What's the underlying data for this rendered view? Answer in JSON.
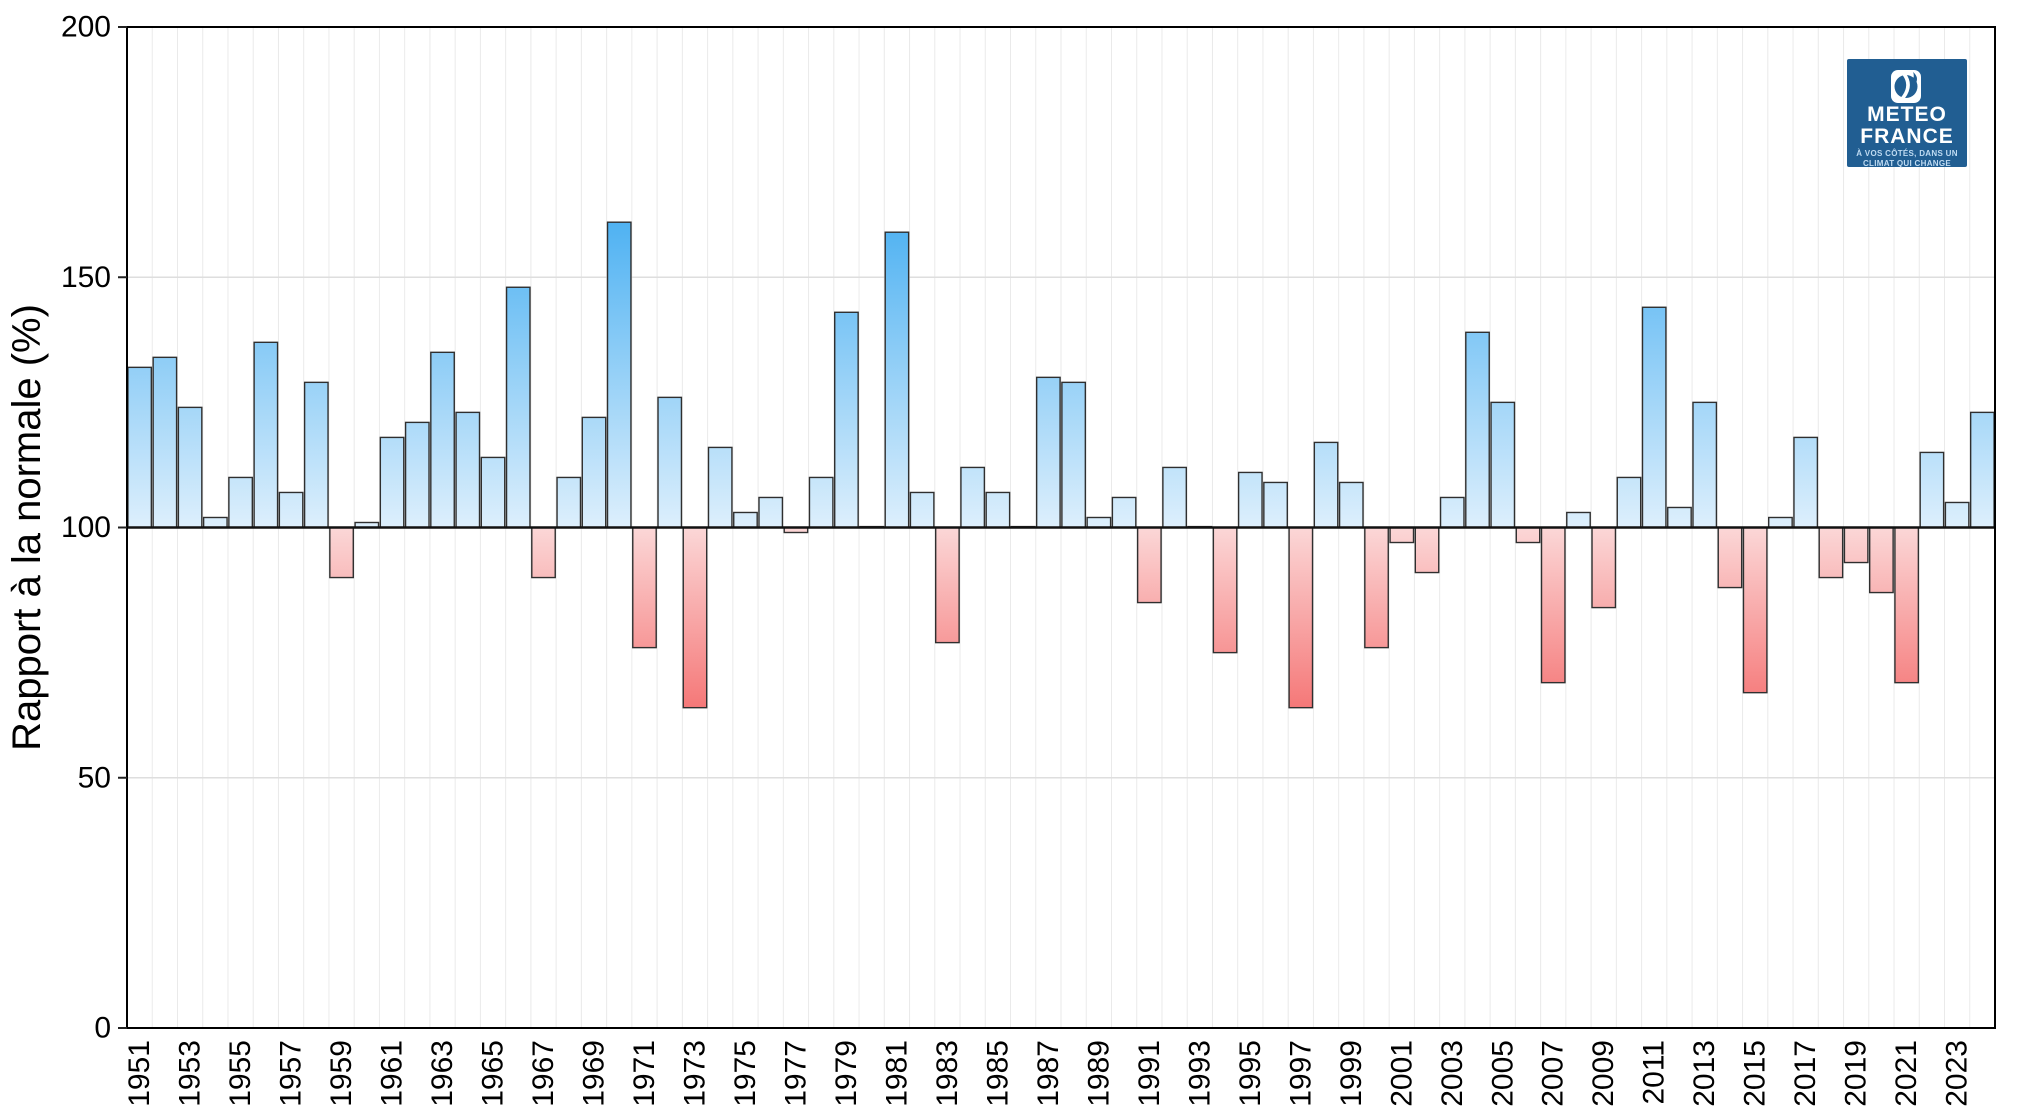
{
  "page": {
    "background": "#ffffff"
  },
  "logo": {
    "line1": "METEO",
    "line2": "FRANCE",
    "tagline1": "À VOS CÔTÉS, DANS UN",
    "tagline2": "CLIMAT QUI CHANGE",
    "bg_color": "#215E92",
    "text_color": "#ffffff",
    "tagline_color": "#BFDBF2"
  },
  "colors": {
    "bar_blue_deep": "#4FB2F2",
    "bar_blue_light": "#DDEFFC",
    "bar_red_deep": "#F57878",
    "bar_red_light": "#FBD7D7",
    "bar_stroke": "#2F2F2F",
    "baseline_line": "#111111",
    "panel_border": "#000000",
    "grid_vertical": "#EAEAEA",
    "grid_horizontal": "#DEDEDE",
    "axis_text": "#000000"
  },
  "chart_data": {
    "type": "bar",
    "title": "",
    "xlabel": "",
    "ylabel": "Rapport à la normale (%)",
    "ylim": [
      0,
      200
    ],
    "yticks": [
      0,
      50,
      100,
      150,
      200
    ],
    "baseline": 100,
    "grid": "on",
    "legend": "none",
    "x_tick_years": [
      1951,
      1953,
      1955,
      1957,
      1959,
      1961,
      1963,
      1965,
      1967,
      1969,
      1971,
      1973,
      1975,
      1977,
      1979,
      1981,
      1983,
      1985,
      1987,
      1989,
      1991,
      1993,
      1995,
      1997,
      1999,
      2001,
      2003,
      2005,
      2007,
      2009,
      2011,
      2013,
      2015,
      2017,
      2019,
      2021,
      2023
    ],
    "years": [
      1951,
      1952,
      1953,
      1954,
      1955,
      1956,
      1957,
      1958,
      1959,
      1960,
      1961,
      1962,
      1963,
      1964,
      1965,
      1966,
      1967,
      1968,
      1969,
      1970,
      1971,
      1972,
      1973,
      1974,
      1975,
      1976,
      1977,
      1978,
      1979,
      1980,
      1981,
      1982,
      1983,
      1984,
      1985,
      1986,
      1987,
      1988,
      1989,
      1990,
      1991,
      1992,
      1993,
      1994,
      1995,
      1996,
      1997,
      1998,
      1999,
      2000,
      2001,
      2002,
      2003,
      2004,
      2005,
      2006,
      2007,
      2008,
      2009,
      2010,
      2011,
      2012,
      2013,
      2014,
      2015,
      2016,
      2017,
      2018,
      2019,
      2020,
      2021,
      2022,
      2023,
      2024
    ],
    "values": [
      132,
      134,
      124,
      102,
      110,
      137,
      107,
      129,
      90,
      101,
      118,
      121,
      135,
      123,
      114,
      148,
      90,
      110,
      122,
      161,
      76,
      126,
      64,
      116,
      103,
      106,
      99,
      110,
      143,
      100,
      159,
      107,
      77,
      112,
      107,
      100,
      130,
      129,
      102,
      106,
      85,
      112,
      100,
      75,
      111,
      109,
      64,
      117,
      109,
      76,
      97,
      91,
      106,
      139,
      125,
      97,
      69,
      103,
      84,
      110,
      144,
      104,
      125,
      88,
      67,
      102,
      118,
      90,
      93,
      87,
      69,
      115,
      105,
      123
    ]
  }
}
